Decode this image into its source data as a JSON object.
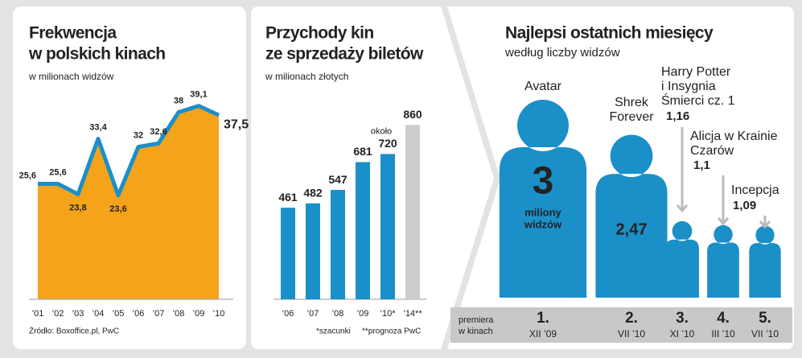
{
  "chart_data": [
    {
      "type": "area",
      "title": [
        "Frekwencja",
        "w polskich kinach"
      ],
      "subtitle": "w milionach widzów",
      "categories": [
        "’01",
        "’02",
        "’03",
        "’04",
        "’05",
        "’06",
        "’07",
        "’08",
        "’09",
        "’10"
      ],
      "values": [
        25.6,
        25.6,
        23.8,
        33.4,
        23.6,
        32,
        32.6,
        38,
        39.1,
        37.5
      ],
      "value_labels": [
        "25,6",
        "25,6",
        "23,8",
        "33,4",
        "23,6",
        "32",
        "32,6",
        "38",
        "39,1",
        "37,5"
      ],
      "color": "#f5a31a",
      "line_color": "#1b8fc8",
      "ylim": [
        5.6,
        41
      ],
      "source": "Źródło: Boxoffice.pl, PwC"
    },
    {
      "type": "bar",
      "title": [
        "Przychody kin",
        "ze sprzedaży biletów"
      ],
      "subtitle": "w milionach złotych",
      "categories": [
        "’06",
        "’07",
        "’08",
        "’09",
        "’10*",
        "’14**"
      ],
      "values": [
        461,
        482,
        547,
        681,
        720,
        860
      ],
      "colors": [
        "#1b8fc8",
        "#1b8fc8",
        "#1b8fc8",
        "#1b8fc8",
        "#1b8fc8",
        "#cccccc"
      ],
      "ylim": [
        20,
        900
      ],
      "annotation": "około",
      "footnotes": [
        "*szacunki",
        "**prognoza PwC"
      ]
    },
    {
      "type": "pictogram",
      "title": "Najlepsi ostatnich miesięcy",
      "subtitle": "według liczby widzów",
      "names": [
        [
          "Avatar"
        ],
        [
          "Shrek",
          "Forever"
        ],
        [
          "Harry Potter",
          "i Insygnia",
          "Śmierci cz. 1"
        ],
        [
          "Alicja w Krainie",
          "Czarów"
        ],
        [
          "Incepcja"
        ]
      ],
      "values": [
        3,
        2.47,
        1.16,
        1.1,
        1.09
      ],
      "value_labels": [
        "3",
        "2,47",
        "1,16",
        "1,1",
        "1,09"
      ],
      "unit_label": [
        "miliony",
        "widzów"
      ],
      "ranks": [
        "1.",
        "2.",
        "3.",
        "4.",
        "5."
      ],
      "dates": [
        "XII ’09",
        "VII ’10",
        "XI ’10",
        "III ’10",
        "VII ’10"
      ],
      "footer_label": [
        "premiera",
        "w kinach"
      ],
      "color": "#1b8fc8"
    }
  ]
}
